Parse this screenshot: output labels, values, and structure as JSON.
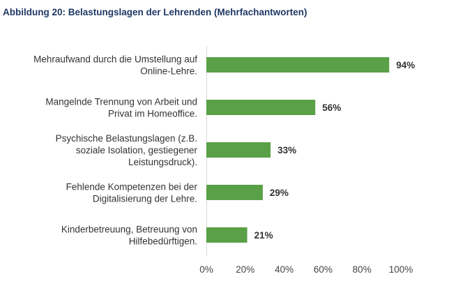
{
  "chart_data": {
    "type": "bar",
    "orientation": "horizontal",
    "title": "Abbildung 20: Belastungslagen der Lehrenden (Mehrfachantworten)",
    "categories": [
      [
        "Mehraufwand durch die Umstellung auf",
        "Online-Lehre."
      ],
      [
        "Mangelnde Trennung von Arbeit und",
        "Privat im Homeoffice."
      ],
      [
        "Psychische Belastungslagen (z.B.",
        "soziale Isolation, gestiegener",
        "Leistungsdruck)."
      ],
      [
        "Fehlende Kompetenzen bei der",
        "Digitalisierung der Lehre."
      ],
      [
        "Kinderbetreuung, Betreuung von",
        "Hilfebedürftigen."
      ]
    ],
    "values": [
      94,
      56,
      33,
      29,
      21
    ],
    "value_labels": [
      "94%",
      "56%",
      "33%",
      "29%",
      "21%"
    ],
    "xlim": [
      0,
      100
    ],
    "xticks": [
      0,
      20,
      40,
      60,
      80,
      100
    ],
    "xtick_labels": [
      "0%",
      "20%",
      "40%",
      "60%",
      "80%",
      "100%"
    ],
    "xlabel": "",
    "ylabel": "",
    "bar_color": "#5aa046",
    "grid": false,
    "legend": "none"
  }
}
